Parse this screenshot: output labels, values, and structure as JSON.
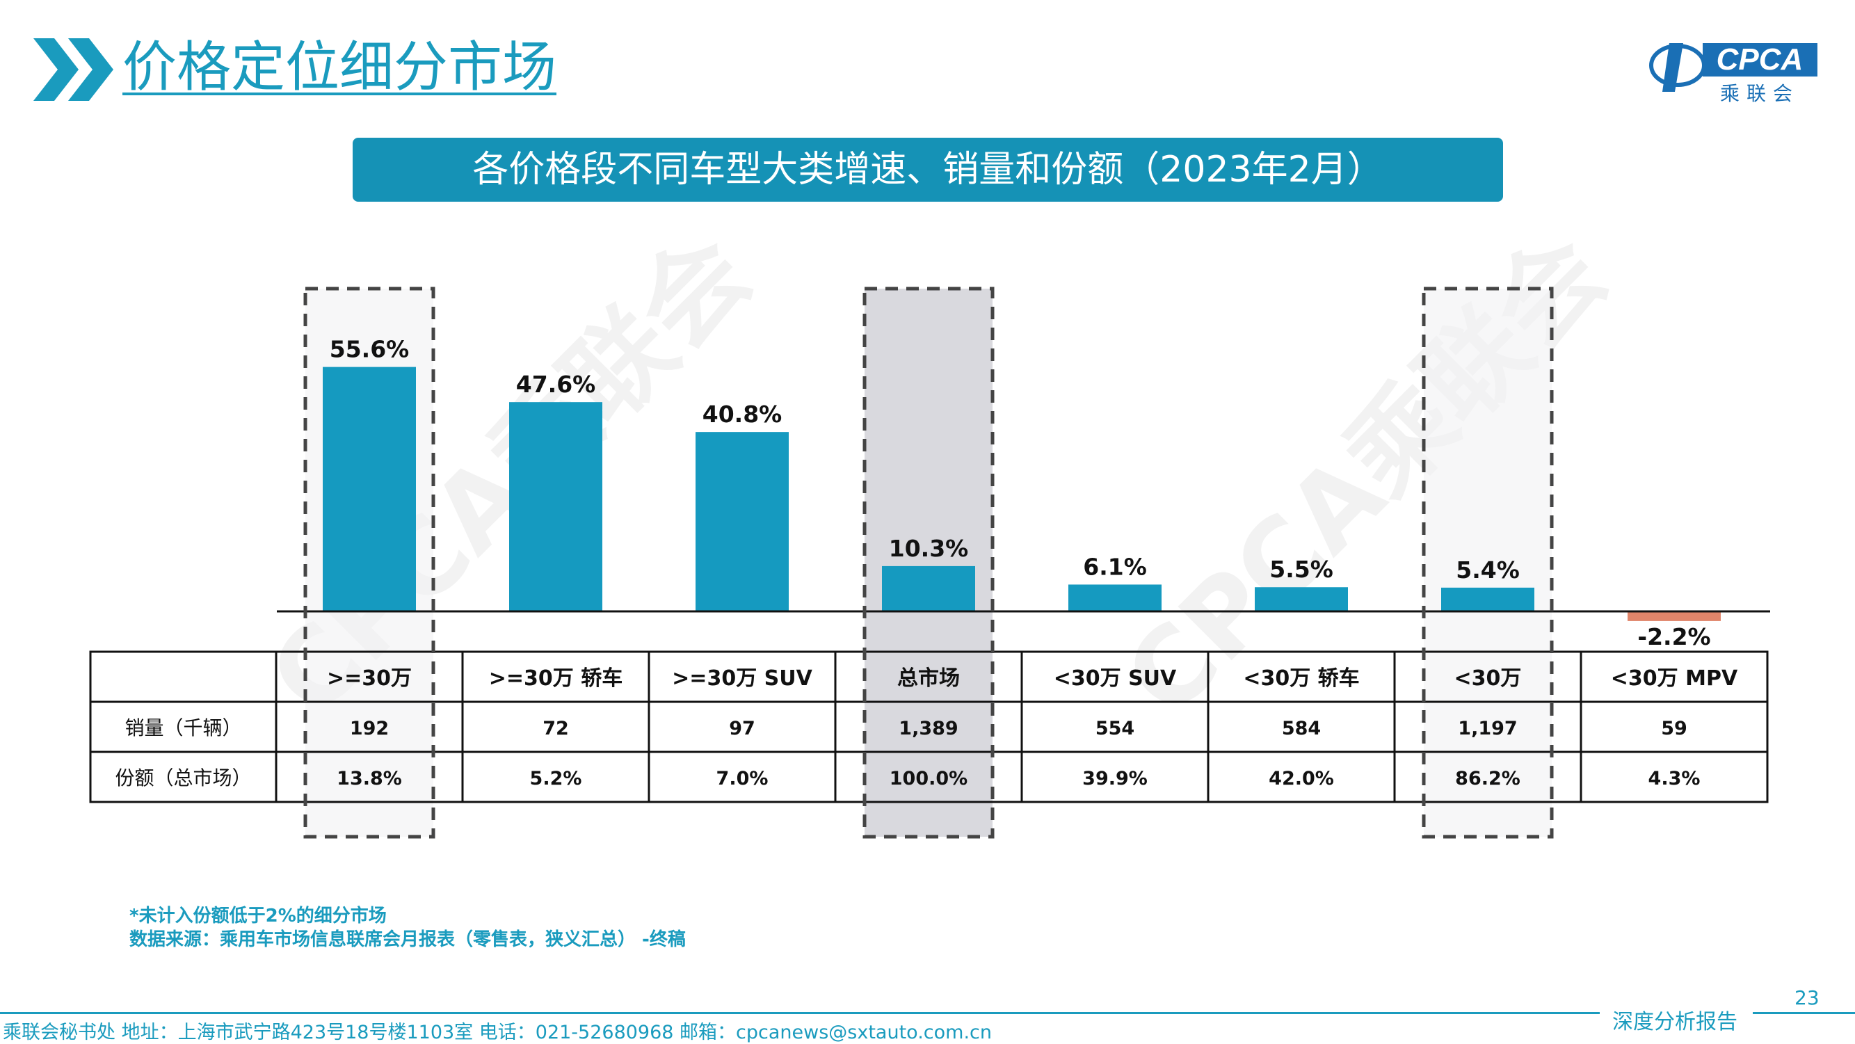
{
  "header": {
    "section_title": "价格定位细分市场",
    "logo_text": "CPCA",
    "logo_sub": "乘联会"
  },
  "banner": {
    "title": "各价格段不同车型大类增速、销量和份额（2023年2月）"
  },
  "watermark": "CPCA乘联会",
  "colors": {
    "accent": "#1a9bbe",
    "bar_positive": "#159ac0",
    "bar_negative": "#e0856a",
    "highlight": "#d9d9de"
  },
  "chart_data": {
    "type": "bar",
    "categories": [
      ">=30万",
      ">=30万 轿车",
      ">=30万 SUV",
      "总市场",
      "<30万 SUV",
      "<30万 轿车",
      "<30万",
      "<30万 MPV"
    ],
    "values": [
      55.6,
      47.6,
      40.8,
      10.3,
      6.1,
      5.5,
      5.4,
      -2.2
    ],
    "value_labels": [
      "55.6%",
      "47.6%",
      "40.8%",
      "10.3%",
      "6.1%",
      "5.5%",
      "5.4%",
      "-2.2%"
    ],
    "highlighted": [
      ">=30万",
      "总市场",
      "<30万"
    ],
    "grid": false
  },
  "table": {
    "rows": [
      {
        "label": "销量（千辆）",
        "cells": [
          "192",
          "72",
          "97",
          "1,389",
          "554",
          "584",
          "1,197",
          "59"
        ]
      },
      {
        "label": "份额（总市场）",
        "cells": [
          "13.8%",
          "5.2%",
          "7.0%",
          "100.0%",
          "39.9%",
          "42.0%",
          "86.2%",
          "4.3%"
        ]
      }
    ]
  },
  "notes": {
    "note1": "*未计入份额低于2%的细分市场",
    "note2": "数据来源：乘用车市场信息联席会月报表（零售表，狭义汇总） -终稿"
  },
  "footer": {
    "text": "乘联会秘书处   地址：上海市武宁路423号18号楼1103室  电话：021-52680968   邮箱：cpcanews@sxtauto.com.cn",
    "report_label": "深度分析报告",
    "page_number": "23"
  }
}
